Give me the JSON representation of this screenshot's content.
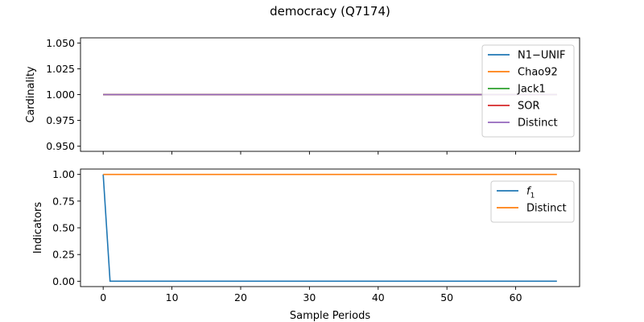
{
  "figure": {
    "title": "democracy (Q7174)"
  },
  "chart_data": [
    {
      "type": "line",
      "ylabel": "Cardinality",
      "xlabel": "",
      "xlim": [
        -3.3,
        69.3
      ],
      "ylim": [
        0.945,
        1.055
      ],
      "yticks": [
        0.95,
        0.975,
        1.0,
        1.025,
        1.05
      ],
      "ytick_labels": [
        "0.950",
        "0.975",
        "1.000",
        "1.025",
        "1.050"
      ],
      "x_tick_values": [
        0,
        10,
        20,
        30,
        40,
        50,
        60
      ],
      "show_x_tick_labels": false,
      "legend_position": "top-right",
      "series": [
        {
          "name": "N1−UNIF",
          "color": "#1f77b4",
          "constant": 1.0
        },
        {
          "name": "Chao92",
          "color": "#ff7f0e",
          "constant": 1.0
        },
        {
          "name": "Jack1",
          "color": "#2ca02c",
          "constant": 1.0
        },
        {
          "name": "SOR",
          "color": "#d62728",
          "constant": 1.0
        },
        {
          "name": "Distinct",
          "color": "#9467bd",
          "constant": 1.0
        }
      ],
      "x_range": [
        0,
        66
      ]
    },
    {
      "type": "line",
      "ylabel": "Indicators",
      "xlabel": "Sample Periods",
      "xlim": [
        -3.3,
        69.3
      ],
      "ylim": [
        -0.05,
        1.05
      ],
      "yticks": [
        0.0,
        0.25,
        0.5,
        0.75,
        1.0
      ],
      "ytick_labels": [
        "0.00",
        "0.25",
        "0.50",
        "0.75",
        "1.00"
      ],
      "x_tick_values": [
        0,
        10,
        20,
        30,
        40,
        50,
        60
      ],
      "x_tick_labels": [
        "0",
        "10",
        "20",
        "30",
        "40",
        "50",
        "60"
      ],
      "show_x_tick_labels": true,
      "legend_position": "top-right",
      "series": [
        {
          "name": "f",
          "subscript": "1",
          "color": "#1f77b4",
          "first_value": 1.0,
          "rest_value": 0.0
        },
        {
          "name": "Distinct",
          "color": "#ff7f0e",
          "constant": 1.0
        }
      ],
      "x_range": [
        0,
        66
      ]
    }
  ]
}
